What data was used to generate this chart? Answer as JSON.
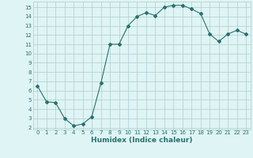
{
  "x": [
    0,
    1,
    2,
    3,
    4,
    5,
    6,
    7,
    8,
    9,
    10,
    11,
    12,
    13,
    14,
    15,
    16,
    17,
    18,
    19,
    20,
    21,
    22,
    23
  ],
  "y": [
    6.5,
    4.8,
    4.7,
    3.0,
    2.2,
    2.4,
    3.2,
    6.8,
    11.0,
    11.0,
    13.0,
    14.0,
    14.4,
    14.1,
    15.0,
    15.2,
    15.2,
    14.8,
    14.3,
    12.1,
    11.3,
    12.1,
    12.5,
    12.1
  ],
  "line_color": "#2a7070",
  "marker": "D",
  "marker_size": 2.0,
  "bg_color": "#dff4f4",
  "grid_color": "#aecece",
  "xlabel": "Humidex (Indice chaleur)",
  "xlim": [
    -0.5,
    23.5
  ],
  "ylim": [
    1.8,
    15.6
  ],
  "yticks": [
    2,
    3,
    4,
    5,
    6,
    7,
    8,
    9,
    10,
    11,
    12,
    13,
    14,
    15
  ],
  "xticks": [
    0,
    1,
    2,
    3,
    4,
    5,
    6,
    7,
    8,
    9,
    10,
    11,
    12,
    13,
    14,
    15,
    16,
    17,
    18,
    19,
    20,
    21,
    22,
    23
  ],
  "tick_fontsize": 5.0,
  "xlabel_fontsize": 6.5
}
